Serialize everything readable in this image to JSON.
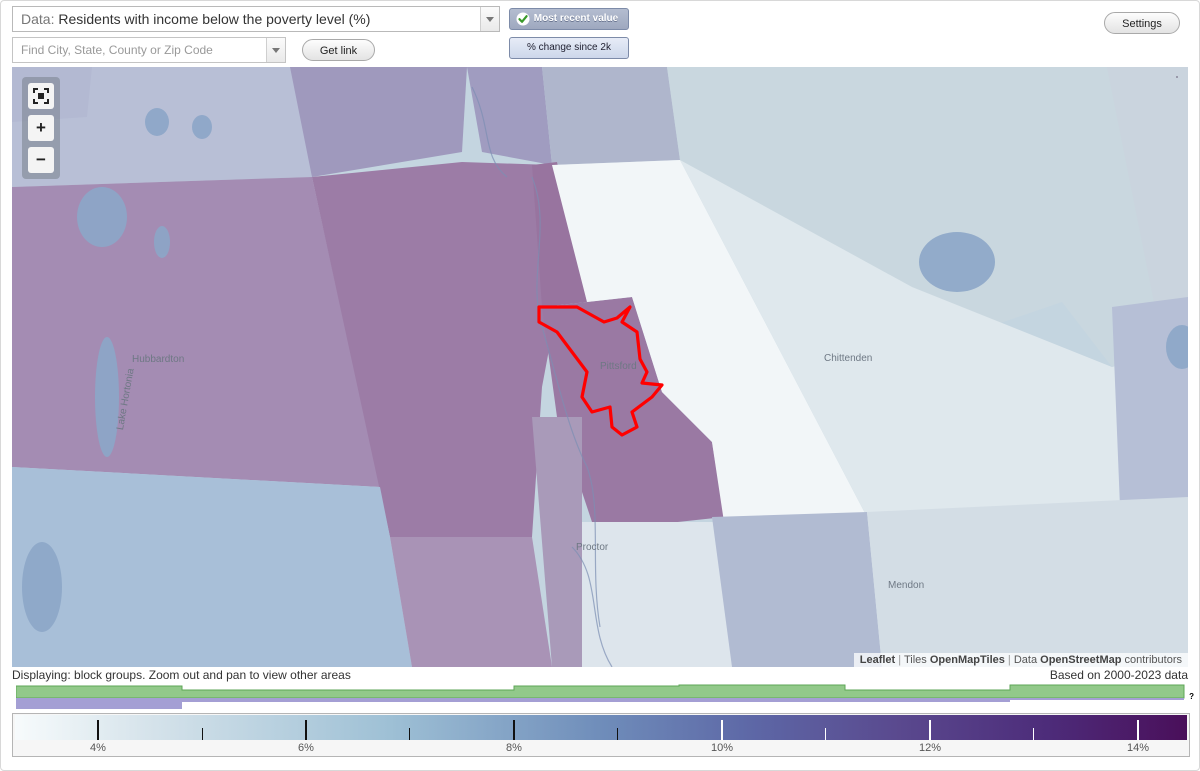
{
  "data_select": {
    "prefix": "Data:",
    "value": "Residents with income below the poverty level (%)"
  },
  "search": {
    "placeholder": "Find City, State, County or Zip Code"
  },
  "buttons": {
    "get_link": "Get link",
    "settings": "Settings"
  },
  "value_toggle": {
    "active": "Most recent value",
    "inactive": "% change since 2k"
  },
  "map": {
    "place_labels": {
      "hubbardton": "Hubbardton",
      "pittsford": "Pittsford",
      "chittenden": "Chittenden",
      "proctor": "Proctor",
      "mendon": "Mendon",
      "lake": "Lake Hortonia"
    },
    "attribution": {
      "leaflet": "Leaflet",
      "tiles": "Tiles",
      "openmaptiles": "OpenMapTiles",
      "data": "Data",
      "osm": "OpenStreetMap",
      "contributors": "contributors",
      "sep": "|"
    },
    "selected_boundary_color": "#ff0000"
  },
  "status": {
    "displaying": "Displaying: block groups. Zoom out and pan to view other areas",
    "based_on": "Based on 2000-2023 data"
  },
  "timeline": {
    "help": "?"
  },
  "legend": {
    "labels": [
      "4%",
      "6%",
      "8%",
      "10%",
      "12%",
      "14%"
    ],
    "color_low": "#f7fbfc",
    "color_high": "#4a0f5a"
  },
  "icons": {
    "fullscreen": "fullscreen-icon",
    "zoom_in": "plus-icon",
    "zoom_out": "minus-icon",
    "check": "check-icon"
  }
}
